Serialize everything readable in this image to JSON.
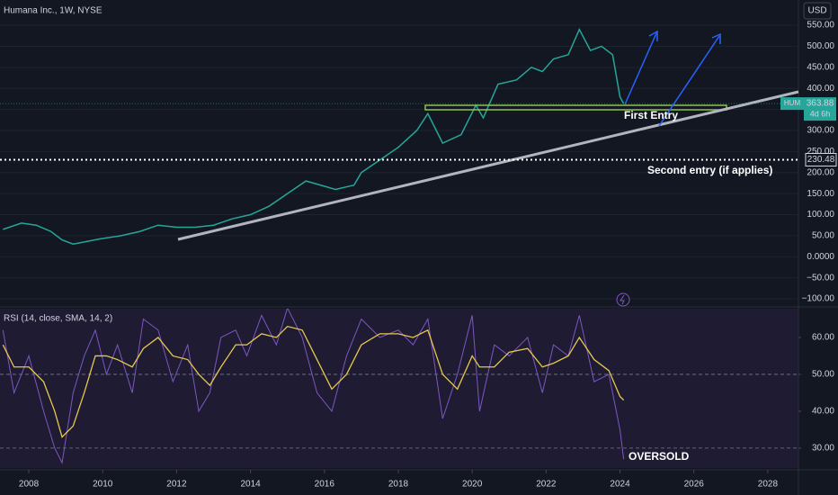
{
  "header": {
    "title": "Humana Inc., 1W, NYSE",
    "currency": "USD"
  },
  "chart_data": [
    {
      "type": "line",
      "color": "#26a69a",
      "x": [
        2007.3,
        2007.8,
        2008.2,
        2008.6,
        2008.9,
        2009.2,
        2009.5,
        2009.9,
        2010.5,
        2011,
        2011.5,
        2012,
        2012.5,
        2013,
        2013.5,
        2014,
        2014.5,
        2015,
        2015.5,
        2015.9,
        2016.3,
        2016.8,
        2017,
        2017.5,
        2018,
        2018.5,
        2018.8,
        2019.2,
        2019.7,
        2020.1,
        2020.3,
        2020.7,
        2021.2,
        2021.6,
        2021.9,
        2022.2,
        2022.6,
        2022.9,
        2023.2,
        2023.5,
        2023.8,
        2024.0,
        2024.1
      ],
      "values": [
        65,
        80,
        75,
        60,
        40,
        30,
        35,
        42,
        50,
        60,
        75,
        70,
        70,
        75,
        90,
        100,
        120,
        150,
        180,
        170,
        160,
        170,
        200,
        230,
        260,
        300,
        340,
        270,
        290,
        360,
        330,
        410,
        420,
        450,
        440,
        470,
        480,
        540,
        490,
        500,
        480,
        380,
        363.88
      ],
      "xlim": [
        2007.22,
        2028.83
      ],
      "ylim": [
        -117,
        610
      ],
      "yticks": [
        {
          "value": 550,
          "label": "550.00"
        },
        {
          "value": 500,
          "label": "500.00"
        },
        {
          "value": 450,
          "label": "450.00"
        },
        {
          "value": 400,
          "label": "400.00"
        },
        {
          "value": 350,
          "label": "350.00"
        },
        {
          "value": 300,
          "label": "300.00"
        },
        {
          "value": 250,
          "label": "250.00"
        },
        {
          "value": 200,
          "label": "200.00"
        },
        {
          "value": 150,
          "label": "150.00"
        },
        {
          "value": 100,
          "label": "100.00"
        },
        {
          "value": 50,
          "label": "50.00"
        },
        {
          "value": 0,
          "label": "0.0000"
        },
        {
          "value": -50,
          "label": "−50.00"
        },
        {
          "value": -100,
          "label": "−100.00"
        }
      ],
      "grid": true,
      "symbol": "HUM",
      "last_price": 363.88,
      "countdown": "4d 6h",
      "price_line": 230.48,
      "annotations": [
        "First Entry",
        "Second entry (if applies)"
      ]
    },
    {
      "type": "line",
      "title": "RSI (14, close, SMA, 14, 2)",
      "x": [
        2007.3,
        2007.6,
        2008,
        2008.4,
        2008.7,
        2008.9,
        2009.2,
        2009.5,
        2009.8,
        2010.1,
        2010.4,
        2010.8,
        2011.1,
        2011.5,
        2011.9,
        2012.3,
        2012.6,
        2012.9,
        2013.2,
        2013.6,
        2013.9,
        2014.3,
        2014.7,
        2015,
        2015.4,
        2015.8,
        2016.2,
        2016.6,
        2017,
        2017.5,
        2018,
        2018.4,
        2018.8,
        2019.2,
        2019.6,
        2020,
        2020.2,
        2020.6,
        2021,
        2021.5,
        2021.9,
        2022.2,
        2022.6,
        2022.9,
        2023.3,
        2023.7,
        2024,
        2024.1
      ],
      "series": [
        {
          "color": "#7e57c2",
          "values": [
            62,
            45,
            55,
            40,
            30,
            26,
            45,
            55,
            62,
            50,
            58,
            45,
            65,
            62,
            48,
            58,
            40,
            45,
            60,
            62,
            55,
            66,
            58,
            68,
            60,
            45,
            40,
            55,
            65,
            60,
            62,
            58,
            65,
            38,
            50,
            66,
            40,
            58,
            55,
            60,
            45,
            58,
            55,
            66,
            48,
            50,
            35,
            27
          ]
        },
        {
          "color": "#e6c84f",
          "values": [
            58,
            52,
            52,
            48,
            40,
            33,
            36,
            45,
            55,
            55,
            54,
            52,
            57,
            60,
            55,
            54,
            50,
            47,
            52,
            58,
            58,
            61,
            60,
            63,
            62,
            54,
            46,
            50,
            58,
            61,
            61,
            60,
            62,
            50,
            46,
            55,
            52,
            52,
            56,
            57,
            52,
            53,
            55,
            60,
            54,
            51,
            44,
            43
          ]
        }
      ],
      "xlim": [
        2007.22,
        2028.83
      ],
      "ylim": [
        24.6,
        67.8
      ],
      "yticks": [
        {
          "value": 60,
          "label": "60.00"
        },
        {
          "value": 50,
          "label": "50.00"
        },
        {
          "value": 40,
          "label": "40.00"
        },
        {
          "value": 30,
          "label": "30.00"
        }
      ],
      "dashed_levels": [
        50,
        30
      ],
      "xticks": [
        2008,
        2010,
        2012,
        2014,
        2016,
        2018,
        2020,
        2022,
        2024,
        2026,
        2028
      ],
      "annotations": [
        "OVERSOLD"
      ]
    }
  ]
}
